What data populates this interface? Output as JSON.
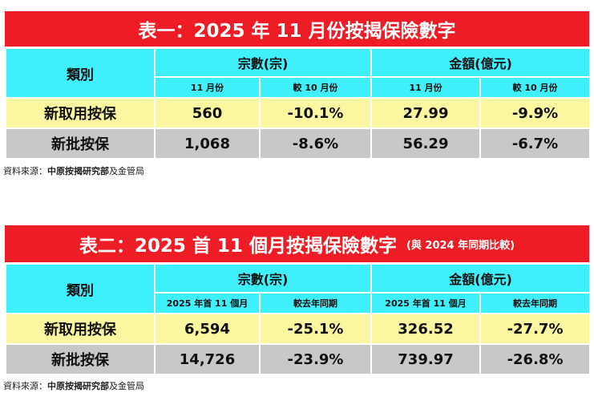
{
  "table1": {
    "title": "表一：2025 年 11 月份按揭保險數字",
    "category_header": "類別",
    "count_header": "宗數(宗)",
    "amount_header": "金額(億元)",
    "count_sub": [
      "11 月份",
      "較 10 月份"
    ],
    "amount_sub": [
      "11 月份",
      "較 10 月份"
    ],
    "rows": [
      {
        "label": "新取用按保",
        "count": "560",
        "count_change": "-10.1%",
        "amount": "27.99",
        "amount_change": "-9.9%"
      },
      {
        "label": "新批按保",
        "count": "1,068",
        "count_change": "-8.6%",
        "amount": "56.29",
        "amount_change": "-6.7%"
      }
    ]
  },
  "table2": {
    "title": "表二：2025 首 11 個月按揭保險數字",
    "subtitle": "(與 2024 年同期比較)",
    "category_header": "類別",
    "count_header": "宗數(宗)",
    "amount_header": "金額(億元)",
    "count_sub": [
      "2025 年首 11 個月",
      "較去年同期"
    ],
    "amount_sub": [
      "2025 年首 11 個月",
      "較去年同期"
    ],
    "rows": [
      {
        "label": "新取用按保",
        "count": "6,594",
        "count_change": "-25.1%",
        "amount": "326.52",
        "amount_change": "-27.7%"
      },
      {
        "label": "新批按保",
        "count": "14,726",
        "count_change": "-23.9%",
        "amount": "739.97",
        "amount_change": "-26.8%"
      }
    ]
  },
  "source": {
    "prefix": "資料來源：",
    "bold": "中原按揭研究部",
    "suffix": "及金管局"
  },
  "colors": {
    "title_bg": "#ee1c25",
    "header_bg": "#3ff0fb",
    "row1_bg": "#fbf7a0",
    "row2_bg": "#c8c8c8"
  }
}
